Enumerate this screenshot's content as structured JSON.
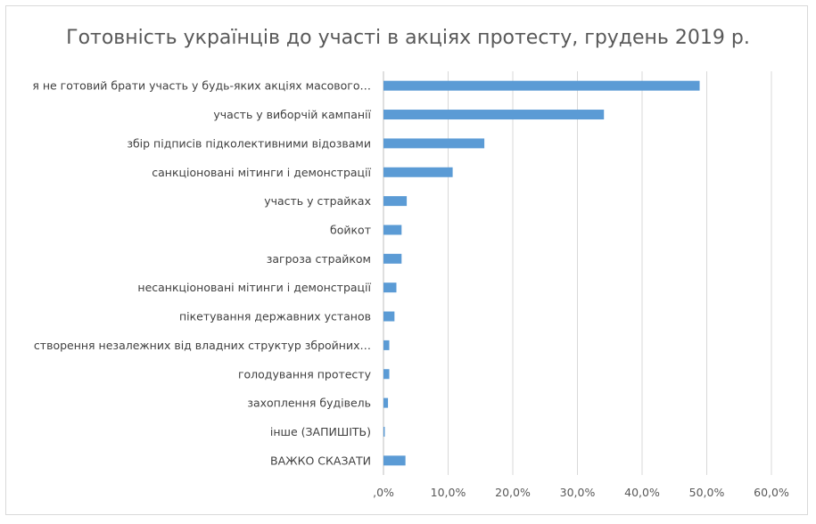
{
  "chart_data": {
    "type": "bar",
    "orientation": "horizontal",
    "title": "Готовність українців до участі в акціях протесту, грудень 2019 р.",
    "categories": [
      "я не готовий брати участь у будь-яких акціях масового…",
      "участь у виборчій кампанії",
      "збір підписів підколективними відозвами",
      "санкціоновані мітинги і демонстрації",
      "участь у страйках",
      "бойкот",
      "загроза страйком",
      "несанкціоновані мітинги і демонстрації",
      "пікетування державних установ",
      "створення незалежних від владних структур збройних…",
      "голодування протесту",
      "захоплення будівель",
      "інше (ЗАПИШІТЬ)",
      "ВАЖКО СКАЗАТИ"
    ],
    "values": [
      48.9,
      34.1,
      15.6,
      10.7,
      3.6,
      2.8,
      2.8,
      2.0,
      1.7,
      0.9,
      0.9,
      0.7,
      0.2,
      3.4
    ],
    "xlim": [
      0,
      60
    ],
    "x_ticks": [
      ",0%",
      "10,0%",
      "20,0%",
      "30,0%",
      "40,0%",
      "50,0%",
      "60,0%"
    ],
    "grid": true,
    "bar_color": "#5b9bd5",
    "grid_color": "#d9d9d9"
  }
}
